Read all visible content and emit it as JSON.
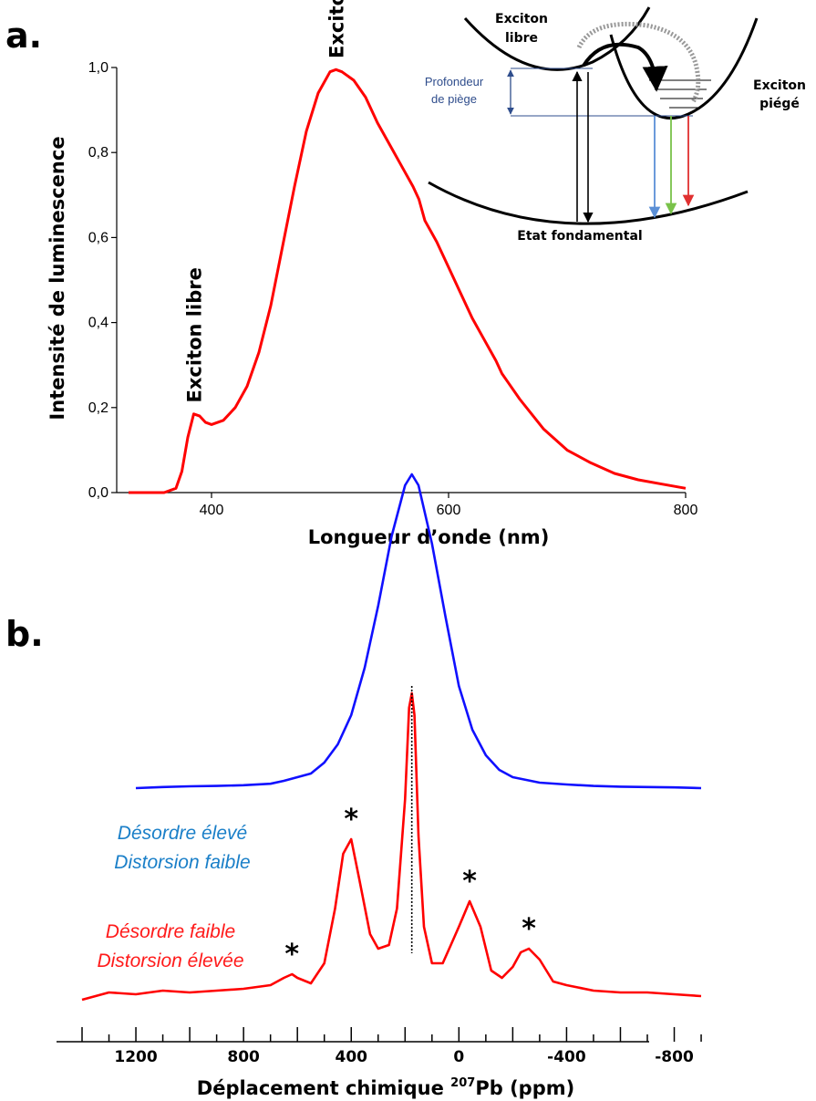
{
  "panel_a": {
    "letter": "a.",
    "inset": {
      "free_exciton": [
        "Exciton",
        "libre"
      ],
      "trapped_exciton": [
        "Exciton",
        "piégé"
      ],
      "trap_depth": [
        "Profondeur",
        "de piège"
      ],
      "ground_state": "Etat fondamental",
      "arrow_colors": [
        "#5b8fd6",
        "#79c24a",
        "#e03030"
      ]
    }
  },
  "panel_b": {
    "letter": "b."
  },
  "chart_data": [
    {
      "type": "line",
      "xlabel": "Longueur d’onde (nm)",
      "ylabel": "Intensité de luminescence",
      "xlim": [
        320,
        800
      ],
      "ylim": [
        0,
        1.0
      ],
      "x_ticks": [
        400,
        600,
        800
      ],
      "y_ticks": [
        0.0,
        0.2,
        0.4,
        0.6,
        0.8,
        1.0
      ],
      "y_tick_labels": [
        "0,0",
        "0,2",
        "0,4",
        "0,6",
        "0,8",
        "1,0"
      ],
      "grid": false,
      "series": [
        {
          "color": "#ff0000",
          "x": [
            330,
            360,
            370,
            375,
            380,
            385,
            390,
            395,
            400,
            410,
            420,
            430,
            440,
            450,
            460,
            470,
            480,
            490,
            500,
            505,
            510,
            520,
            530,
            540,
            550,
            560,
            570,
            575,
            580,
            590,
            600,
            610,
            620,
            630,
            640,
            645,
            650,
            660,
            680,
            700,
            720,
            740,
            760,
            780,
            800
          ],
          "y": [
            0.0,
            0.0,
            0.01,
            0.05,
            0.13,
            0.185,
            0.18,
            0.165,
            0.16,
            0.17,
            0.2,
            0.25,
            0.33,
            0.44,
            0.58,
            0.72,
            0.85,
            0.94,
            0.99,
            0.995,
            0.99,
            0.97,
            0.93,
            0.87,
            0.82,
            0.77,
            0.72,
            0.69,
            0.64,
            0.59,
            0.53,
            0.47,
            0.41,
            0.36,
            0.31,
            0.28,
            0.26,
            0.22,
            0.15,
            0.1,
            0.07,
            0.045,
            0.03,
            0.02,
            0.01
          ]
        }
      ],
      "annotations": [
        {
          "text": "Exciton libre",
          "x": 385,
          "y": 0.19
        },
        {
          "text": "Exciton piégé",
          "x": 505,
          "y": 1.0
        }
      ]
    },
    {
      "type": "line",
      "xlabel": "Déplacement chimique",
      "xlabel_isotope": "207",
      "xlabel_element": "Pb",
      "xlabel_unit": "(ppm)",
      "xlim": [
        1400,
        -950
      ],
      "x_reversed": true,
      "x_ticks": [
        1200,
        800,
        400,
        0,
        -400,
        -800
      ],
      "x_tick_labels": [
        "1200",
        "800",
        "400",
        "0",
        "-400",
        "-800"
      ],
      "minor_tick_step": 100,
      "reference_line_x": 175,
      "grid": false,
      "series": [
        {
          "label_lines": [
            "Désordre élevé",
            "Distorsion faible"
          ],
          "color": "#1010ff",
          "baseline_offset": 0.58,
          "x": [
            1200,
            1100,
            1000,
            900,
            800,
            700,
            650,
            600,
            550,
            500,
            450,
            400,
            350,
            300,
            250,
            200,
            175,
            150,
            100,
            50,
            0,
            -50,
            -100,
            -150,
            -200,
            -300,
            -400,
            -500,
            -600,
            -700,
            -800,
            -900
          ],
          "y": [
            0.0,
            0.003,
            0.005,
            0.006,
            0.008,
            0.012,
            0.02,
            0.03,
            0.04,
            0.07,
            0.12,
            0.2,
            0.33,
            0.5,
            0.69,
            0.83,
            0.86,
            0.83,
            0.67,
            0.47,
            0.28,
            0.16,
            0.09,
            0.05,
            0.03,
            0.015,
            0.01,
            0.006,
            0.004,
            0.003,
            0.002,
            0.0
          ]
        },
        {
          "label_lines": [
            "Désordre faible",
            "Distorsion élevée"
          ],
          "color": "#ff0000",
          "baseline_offset": 0.0,
          "x": [
            1400,
            1300,
            1200,
            1100,
            1000,
            900,
            800,
            700,
            650,
            620,
            600,
            550,
            500,
            460,
            430,
            400,
            370,
            330,
            300,
            260,
            230,
            200,
            185,
            175,
            165,
            150,
            130,
            100,
            60,
            30,
            0,
            -40,
            -80,
            -120,
            -160,
            -200,
            -230,
            -260,
            -300,
            -350,
            -400,
            -500,
            -600,
            -700,
            -800,
            -900
          ],
          "y": [
            0.0,
            0.02,
            0.015,
            0.025,
            0.02,
            0.025,
            0.03,
            0.04,
            0.06,
            0.07,
            0.06,
            0.045,
            0.1,
            0.25,
            0.4,
            0.44,
            0.33,
            0.18,
            0.14,
            0.15,
            0.25,
            0.55,
            0.8,
            0.84,
            0.78,
            0.45,
            0.2,
            0.1,
            0.1,
            0.15,
            0.2,
            0.27,
            0.2,
            0.08,
            0.06,
            0.09,
            0.13,
            0.14,
            0.11,
            0.05,
            0.04,
            0.025,
            0.02,
            0.02,
            0.015,
            0.01
          ]
        }
      ],
      "annotations": [
        {
          "text": "*",
          "x": 400
        },
        {
          "text": "*",
          "x": -40
        },
        {
          "text": "*",
          "x": -260
        },
        {
          "text": "*",
          "x": 620
        }
      ]
    }
  ]
}
